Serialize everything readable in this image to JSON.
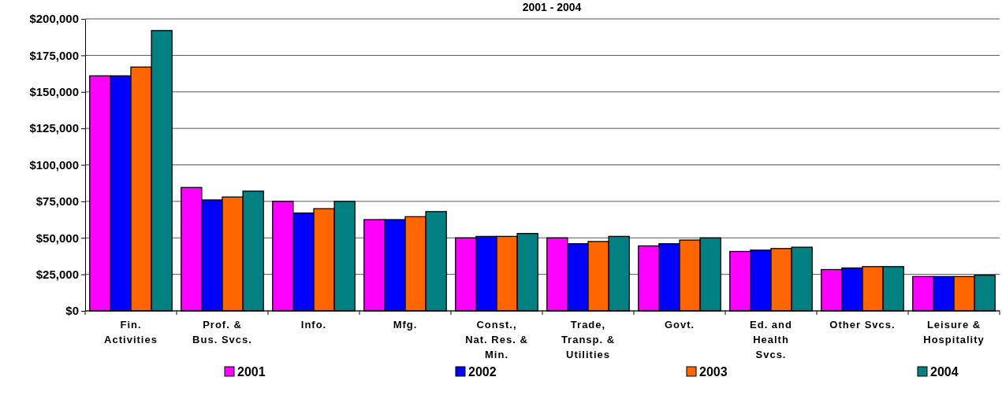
{
  "chart_data": {
    "type": "bar",
    "title": "2001 - 2004",
    "categories": [
      "Fin.\nActivities",
      "Prof. &\nBus. Svcs.",
      "Info.",
      "Mfg.",
      "Const.,\nNat. Res. &\nMin.",
      "Trade,\nTransp. &\nUtilities",
      "Govt.",
      "Ed. and\nHealth\nSvcs.",
      "Other Svcs.",
      "Leisure &\nHospitality"
    ],
    "series": [
      {
        "name": "2001",
        "color": "#ff00ff",
        "values": [
          161000,
          84500,
          75000,
          62500,
          50000,
          50000,
          44500,
          40700,
          28300,
          23500
        ]
      },
      {
        "name": "2002",
        "color": "#0000ff",
        "values": [
          161000,
          76000,
          67000,
          62500,
          51000,
          46000,
          46000,
          41600,
          29400,
          23500
        ]
      },
      {
        "name": "2003",
        "color": "#ff6600",
        "values": [
          167000,
          78000,
          70000,
          64500,
          51000,
          47500,
          48500,
          42700,
          30300,
          23500
        ]
      },
      {
        "name": "2004",
        "color": "#008080",
        "values": [
          192000,
          82000,
          75000,
          68000,
          53000,
          51000,
          50000,
          43600,
          30300,
          24400
        ]
      }
    ],
    "ylim": [
      0,
      200000
    ],
    "yticks": [
      {
        "value": 0,
        "label": "$0"
      },
      {
        "value": 25000,
        "label": "$25,000"
      },
      {
        "value": 50000,
        "label": "$50,000"
      },
      {
        "value": 75000,
        "label": "$75,000"
      },
      {
        "value": 100000,
        "label": "$100,000"
      },
      {
        "value": 125000,
        "label": "$125,000"
      },
      {
        "value": 150000,
        "label": "$150,000"
      },
      {
        "value": 175000,
        "label": "$175,000"
      },
      {
        "value": 200000,
        "label": "$200,000"
      }
    ],
    "grid": "y",
    "legend": "bottom"
  }
}
